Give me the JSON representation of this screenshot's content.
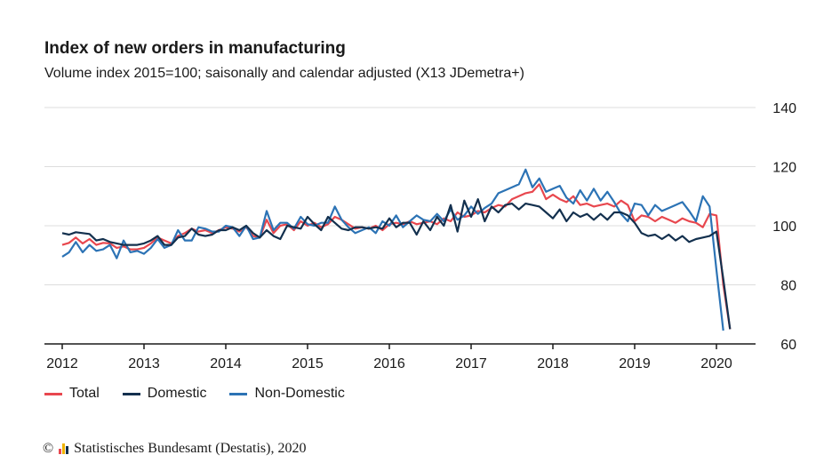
{
  "chart_data": {
    "type": "line",
    "title": "Index of new orders in manufacturing",
    "subtitle": "Volume index 2015=100; saisonally and calendar adjusted (X13 JDemetra+)",
    "ylim": [
      60,
      140
    ],
    "yticks": [
      "60",
      "80",
      "100",
      "120",
      "140"
    ],
    "xticks": [
      "2012",
      "2013",
      "2014",
      "2015",
      "2016",
      "2017",
      "2018",
      "2019",
      "2020"
    ],
    "x_start_year": 2012,
    "grid": true,
    "legend_position": "bottom-left",
    "series": [
      {
        "name": "Total",
        "color": "#e8474e",
        "values": [
          93.5,
          94.2,
          96.0,
          94.0,
          95.5,
          93.5,
          94.2,
          94.0,
          92.5,
          93.0,
          92.0,
          92.0,
          92.5,
          94.0,
          96.0,
          95.0,
          94.0,
          96.5,
          97.5,
          99.0,
          98.0,
          98.5,
          97.5,
          98.5,
          99.5,
          99.0,
          98.0,
          99.5,
          96.5,
          96.0,
          102.0,
          97.5,
          100.0,
          100.5,
          98.5,
          101.5,
          100.0,
          101.0,
          99.5,
          100.5,
          103.0,
          102.0,
          100.5,
          99.0,
          99.5,
          99.0,
          100.0,
          98.5,
          100.5,
          101.0,
          100.5,
          101.5,
          100.5,
          101.0,
          101.5,
          100.5,
          102.5,
          101.5,
          104.5,
          103.0,
          103.5,
          105.0,
          104.5,
          106.0,
          107.0,
          106.5,
          109.0,
          110.0,
          111.0,
          111.5,
          114.0,
          109.0,
          110.5,
          109.0,
          108.0,
          110.0,
          107.0,
          107.5,
          106.5,
          107.0,
          107.5,
          106.5,
          108.5,
          107.0,
          101.5,
          103.5,
          103.0,
          101.5,
          103.0,
          102.0,
          101.0,
          102.5,
          101.5,
          101.0,
          99.5,
          104.0,
          103.5,
          80.0,
          65.0
        ]
      },
      {
        "name": "Domestic",
        "color": "#13304e",
        "values": [
          97.5,
          97.0,
          97.8,
          97.5,
          97.2,
          95.0,
          95.5,
          94.5,
          94.0,
          93.5,
          93.5,
          93.5,
          94.0,
          95.0,
          96.5,
          93.5,
          93.5,
          96.0,
          96.5,
          99.0,
          97.0,
          96.5,
          97.0,
          98.5,
          98.5,
          99.5,
          98.5,
          100.0,
          97.5,
          96.0,
          98.5,
          96.5,
          95.5,
          100.0,
          99.5,
          99.0,
          103.0,
          100.5,
          98.5,
          103.0,
          101.0,
          99.0,
          98.5,
          99.5,
          99.5,
          99.0,
          99.5,
          99.0,
          102.5,
          99.5,
          101.0,
          101.0,
          97.0,
          101.5,
          98.5,
          103.0,
          100.0,
          107.0,
          98.0,
          108.5,
          103.0,
          109.0,
          101.5,
          106.5,
          104.5,
          107.0,
          107.5,
          105.5,
          107.5,
          107.0,
          106.5,
          104.5,
          102.5,
          105.5,
          101.5,
          104.5,
          103.0,
          104.0,
          102.0,
          104.0,
          102.0,
          104.5,
          104.5,
          103.5,
          101.0,
          97.5,
          96.5,
          97.0,
          95.5,
          97.0,
          95.0,
          96.5,
          94.5,
          95.5,
          96.0,
          96.5,
          98.0,
          82.0,
          65.0
        ]
      },
      {
        "name": "Non-Domestic",
        "color": "#2c73b5",
        "values": [
          89.5,
          91.0,
          94.5,
          91.0,
          93.5,
          91.5,
          92.0,
          93.5,
          89.0,
          95.0,
          91.0,
          91.5,
          90.5,
          92.5,
          95.5,
          92.5,
          93.5,
          98.5,
          95.0,
          95.0,
          99.5,
          99.0,
          98.0,
          98.0,
          100.0,
          99.5,
          96.5,
          100.0,
          95.5,
          96.0,
          105.0,
          98.5,
          101.0,
          101.0,
          99.0,
          103.0,
          100.5,
          100.0,
          101.0,
          101.0,
          106.5,
          102.0,
          99.5,
          97.5,
          98.5,
          99.5,
          97.5,
          101.5,
          100.0,
          103.5,
          99.5,
          101.5,
          103.5,
          102.0,
          101.5,
          104.0,
          101.5,
          105.5,
          102.0,
          103.5,
          106.5,
          104.0,
          106.0,
          107.5,
          111.0,
          112.0,
          113.0,
          114.0,
          119.0,
          113.0,
          116.0,
          111.5,
          112.5,
          113.5,
          109.5,
          107.5,
          112.0,
          108.5,
          112.5,
          108.5,
          111.5,
          108.0,
          104.0,
          101.5,
          107.5,
          107.0,
          103.5,
          107.0,
          105.0,
          106.0,
          107.0,
          108.0,
          105.0,
          101.5,
          110.0,
          106.5,
          85.0,
          64.5
        ]
      }
    ]
  },
  "legend": {
    "total": "Total",
    "domestic": "Domestic",
    "non_domestic": "Non-Domestic"
  },
  "footer": {
    "copyright": "©",
    "source": "Statistisches Bundesamt (Destatis), 2020"
  },
  "colors": {
    "grid": "#dddddd",
    "axis": "#1a1a1a",
    "logo": [
      "#e8474e",
      "#f0b400",
      "#13304e"
    ]
  }
}
